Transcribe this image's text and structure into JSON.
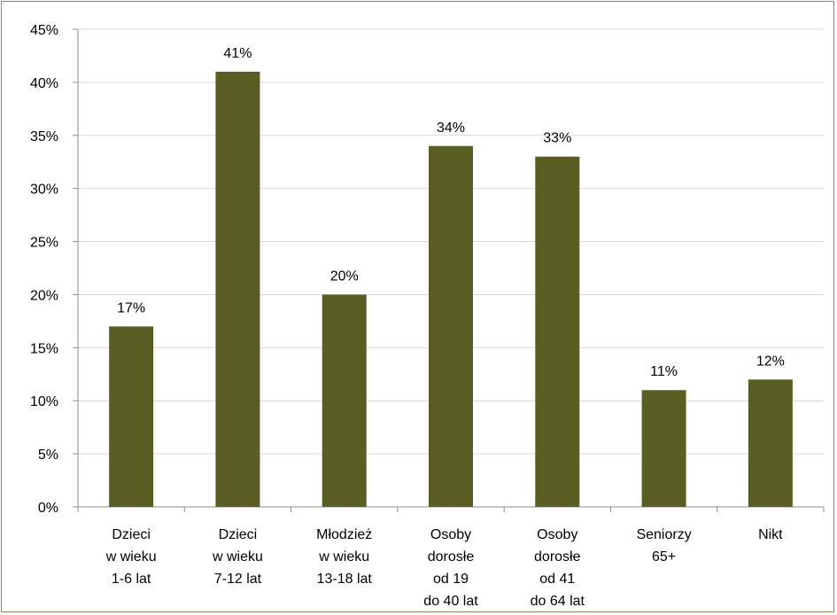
{
  "chart_data": {
    "type": "bar",
    "title": "",
    "xlabel": "",
    "ylabel": "",
    "categories": [
      [
        "Dzieci",
        "w wieku",
        "1-6 lat"
      ],
      [
        "Dzieci",
        "w wieku",
        "7-12 lat"
      ],
      [
        "Młodzież",
        "w wieku",
        "13-18 lat"
      ],
      [
        "Osoby",
        "dorosłe",
        "od 19",
        "do 40 lat"
      ],
      [
        "Osoby",
        "dorosłe",
        "od 41",
        "do 64 lat"
      ],
      [
        "Seniorzy",
        "65+"
      ],
      [
        "Nikt"
      ]
    ],
    "values": [
      17,
      41,
      20,
      34,
      33,
      11,
      12
    ],
    "data_labels": [
      "17%",
      "41%",
      "20%",
      "34%",
      "33%",
      "11%",
      "12%"
    ],
    "ylim": [
      0,
      45
    ],
    "yticks": [
      0,
      5,
      10,
      15,
      20,
      25,
      30,
      35,
      40,
      45
    ],
    "ytick_labels": [
      "0%",
      "5%",
      "10%",
      "15%",
      "20%",
      "25%",
      "30%",
      "35%",
      "40%",
      "45%"
    ],
    "grid": true,
    "legend": "none",
    "colors": {
      "bar": "#5a5e22",
      "grid": "#d9d9d9",
      "axis": "#8c8c8c",
      "border": "#8a8a5a"
    }
  }
}
